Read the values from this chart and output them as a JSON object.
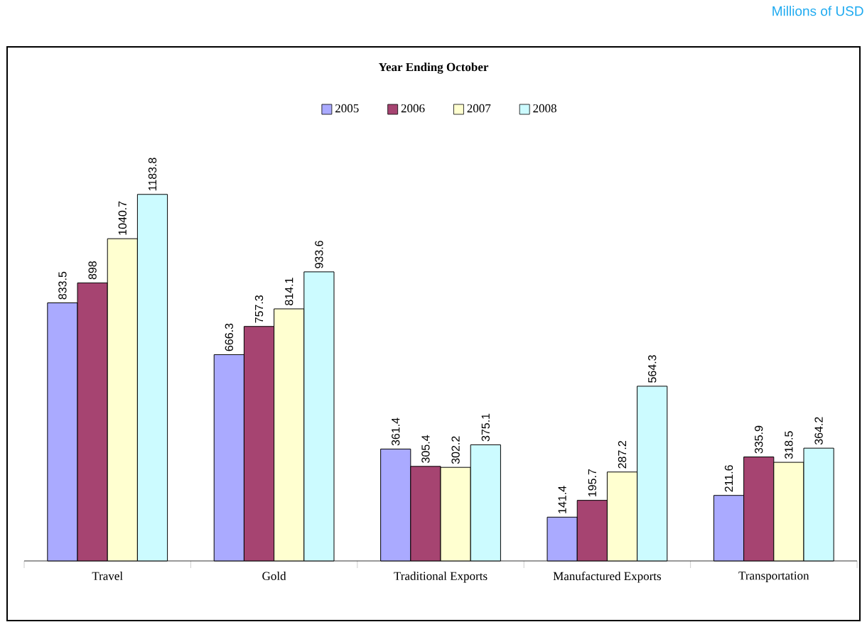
{
  "chart_data": {
    "type": "bar",
    "title": "Year Ending  October",
    "annotations": [
      "Millions of USD"
    ],
    "categories": [
      "Travel",
      "Gold",
      "Traditional Exports",
      "Manufactured Exports",
      "Transportation"
    ],
    "series": [
      {
        "name": "2005",
        "color": "#aaaaff",
        "values": [
          833.5,
          666.3,
          361.4,
          141.4,
          211.6
        ]
      },
      {
        "name": "2006",
        "color": "#a64471",
        "values": [
          898,
          757.3,
          305.4,
          195.7,
          335.9
        ]
      },
      {
        "name": "2007",
        "color": "#ffffd0",
        "values": [
          1040.7,
          814.1,
          302.2,
          287.2,
          318.5
        ]
      },
      {
        "name": "2008",
        "color": "#ccfbff",
        "values": [
          1183.8,
          933.6,
          375.1,
          564.3,
          364.2
        ]
      }
    ],
    "data_labels": true,
    "legend": "top"
  }
}
